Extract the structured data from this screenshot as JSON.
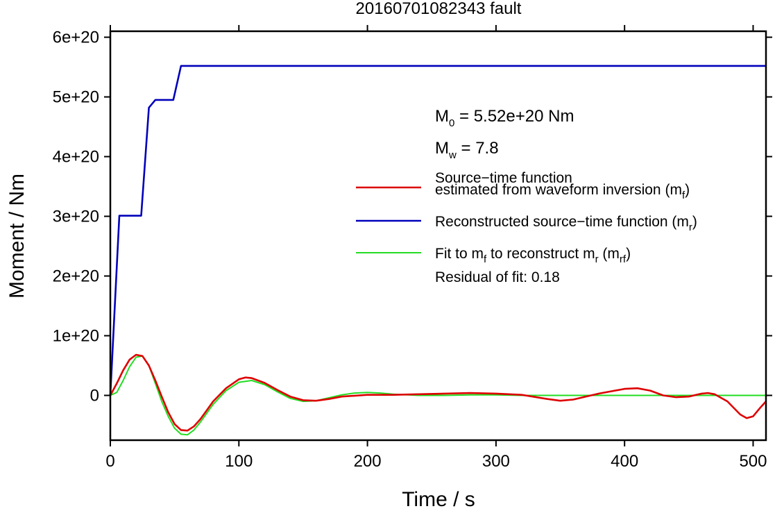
{
  "chart_data": {
    "type": "line",
    "title": "20160701082343 fault",
    "xlabel": "Time / s",
    "ylabel": "Moment / Nm",
    "xlim": [
      0,
      510
    ],
    "ylim": [
      -7.5e+19,
      6.1e+20
    ],
    "x_ticks": [
      0,
      100,
      200,
      300,
      400,
      500
    ],
    "x_tick_labels": [
      "0",
      "100",
      "200",
      "300",
      "400",
      "500"
    ],
    "y_ticks": [
      0,
      1e+20,
      2e+20,
      3e+20,
      4e+20,
      5e+20,
      6e+20
    ],
    "y_tick_labels": [
      "0",
      "1e+20",
      "2e+20",
      "3e+20",
      "4e+20",
      "5e+20",
      "6e+20"
    ],
    "grid": false,
    "legend_position": "right",
    "annotations": {
      "m0": {
        "main": "M",
        "sub": "0",
        "rest": " = 5.52e+20 Nm"
      },
      "mw": {
        "main": "M",
        "sub": "w",
        "rest": " = 7.8"
      },
      "residual": "Residual of fit: 0.18"
    },
    "series": [
      {
        "key": "mf",
        "color": "#dd0000",
        "label_parts": [
          {
            "line": 1,
            "text": "Source−time function"
          },
          {
            "line": 2,
            "text": "estimated from waveform inversion (m"
          },
          {
            "line": 2,
            "text": "f",
            "sub": true
          },
          {
            "line": 2,
            "text": ")"
          }
        ],
        "x": [
          0,
          5,
          10,
          15,
          20,
          25,
          30,
          35,
          40,
          45,
          50,
          55,
          60,
          65,
          70,
          75,
          80,
          90,
          100,
          105,
          110,
          120,
          130,
          140,
          150,
          160,
          170,
          180,
          200,
          220,
          240,
          260,
          280,
          300,
          320,
          340,
          350,
          360,
          380,
          400,
          410,
          420,
          430,
          440,
          450,
          460,
          465,
          470,
          480,
          490,
          495,
          500,
          505,
          510
        ],
        "y": [
          0,
          2e+19,
          4.2e+19,
          6e+19,
          6.8e+19,
          6.6e+19,
          5e+19,
          2.5e+19,
          -2e+18,
          -2.8e+19,
          -4.8e+19,
          -5.8e+19,
          -5.9e+19,
          -5.2e+19,
          -4e+19,
          -2.5e+19,
          -1e+19,
          1.2e+19,
          2.7e+19,
          3e+19,
          2.9e+19,
          2.1e+19,
          9e+18,
          -2e+18,
          -8e+18,
          -9e+18,
          -6e+18,
          -2e+18,
          1e+18,
          1e+18,
          2e+18,
          3e+18,
          4e+18,
          3e+18,
          1e+18,
          -6e+18,
          -9e+18,
          -7e+18,
          3e+18,
          1.1e+19,
          1.2e+19,
          8e+18,
          0,
          -3e+18,
          -2e+18,
          3e+18,
          4e+18,
          2e+18,
          -1e+19,
          -3.2e+19,
          -3.8e+19,
          -3.5e+19,
          -2.2e+19,
          -1e+19
        ]
      },
      {
        "key": "mr",
        "color": "#0000bb",
        "label_parts": [
          {
            "line": 1,
            "text": "Reconstructed source−time function (m"
          },
          {
            "line": 1,
            "text": "r",
            "sub": true
          },
          {
            "line": 1,
            "text": ")"
          }
        ],
        "x": [
          0,
          7,
          24,
          30,
          35,
          49,
          55,
          510
        ],
        "y": [
          0,
          3.01e+20,
          3.01e+20,
          4.82e+20,
          4.95e+20,
          4.95e+20,
          5.52e+20,
          5.52e+20
        ]
      },
      {
        "key": "mrf",
        "color": "#22dd22",
        "label_parts": [
          {
            "line": 1,
            "text": "Fit to m"
          },
          {
            "line": 1,
            "text": "f",
            "sub": true
          },
          {
            "line": 1,
            "text": " to reconstruct m"
          },
          {
            "line": 1,
            "text": "r",
            "sub": true
          },
          {
            "line": 1,
            "text": " (m"
          },
          {
            "line": 1,
            "text": "rf",
            "sub": true
          },
          {
            "line": 1,
            "text": ")"
          }
        ],
        "x": [
          0,
          5,
          10,
          15,
          20,
          25,
          30,
          35,
          40,
          45,
          50,
          55,
          60,
          65,
          70,
          80,
          90,
          100,
          110,
          120,
          130,
          140,
          150,
          160,
          170,
          180,
          190,
          200,
          210,
          220,
          240,
          260,
          280,
          300,
          320,
          340,
          360,
          380,
          400,
          420,
          440,
          460,
          480,
          500,
          510
        ],
        "y": [
          0,
          5e+18,
          2.5e+19,
          4.8e+19,
          6.4e+19,
          6.6e+19,
          5e+19,
          2e+19,
          -1e+19,
          -3.5e+19,
          -5.5e+19,
          -6.5e+19,
          -6.6e+19,
          -5.8e+19,
          -4.5e+19,
          -1.5e+19,
          8e+18,
          2.2e+19,
          2.5e+19,
          1.8e+19,
          6e+18,
          -5e+18,
          -1e+19,
          -9e+18,
          -4e+18,
          1e+18,
          4e+18,
          5e+18,
          4e+18,
          2e+18,
          0,
          0,
          1e+18,
          1e+18,
          0,
          0,
          0,
          0,
          0,
          0,
          0,
          0,
          0,
          0,
          0
        ]
      }
    ]
  }
}
